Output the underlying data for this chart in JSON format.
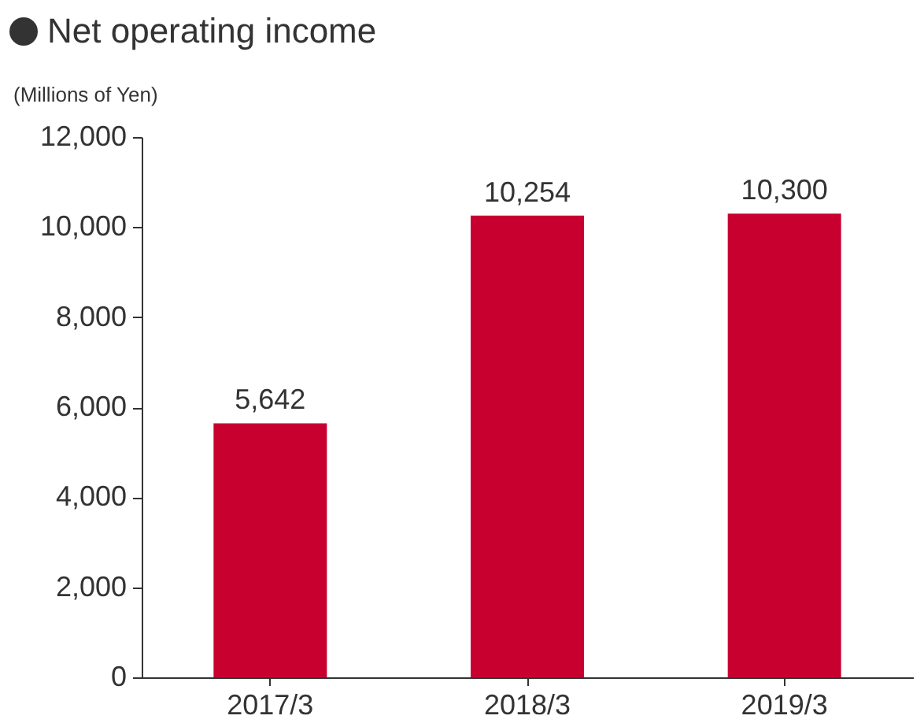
{
  "chart_data": {
    "type": "bar",
    "title": "Net operating income",
    "ylabel": "(Millions of Yen)",
    "categories": [
      "2017/3",
      "2018/3",
      "2019/3"
    ],
    "values": [
      5642,
      10254,
      10300
    ],
    "color": "#c8002f",
    "value_labels": [
      "5,642",
      "10,254",
      "10,300"
    ],
    "ylim": [
      0,
      12000
    ],
    "yticks": [
      0,
      {
        "value": 2000,
        "label": "2,000"
      },
      {
        "value": 4000,
        "label": "4,000"
      },
      {
        "value": 6000,
        "label": "6,000"
      },
      {
        "value": 8000,
        "label": "8,000"
      },
      {
        "value": 10000,
        "label": "10,000"
      },
      {
        "value": 12000,
        "label": "12,000"
      }
    ],
    "grid": false
  }
}
